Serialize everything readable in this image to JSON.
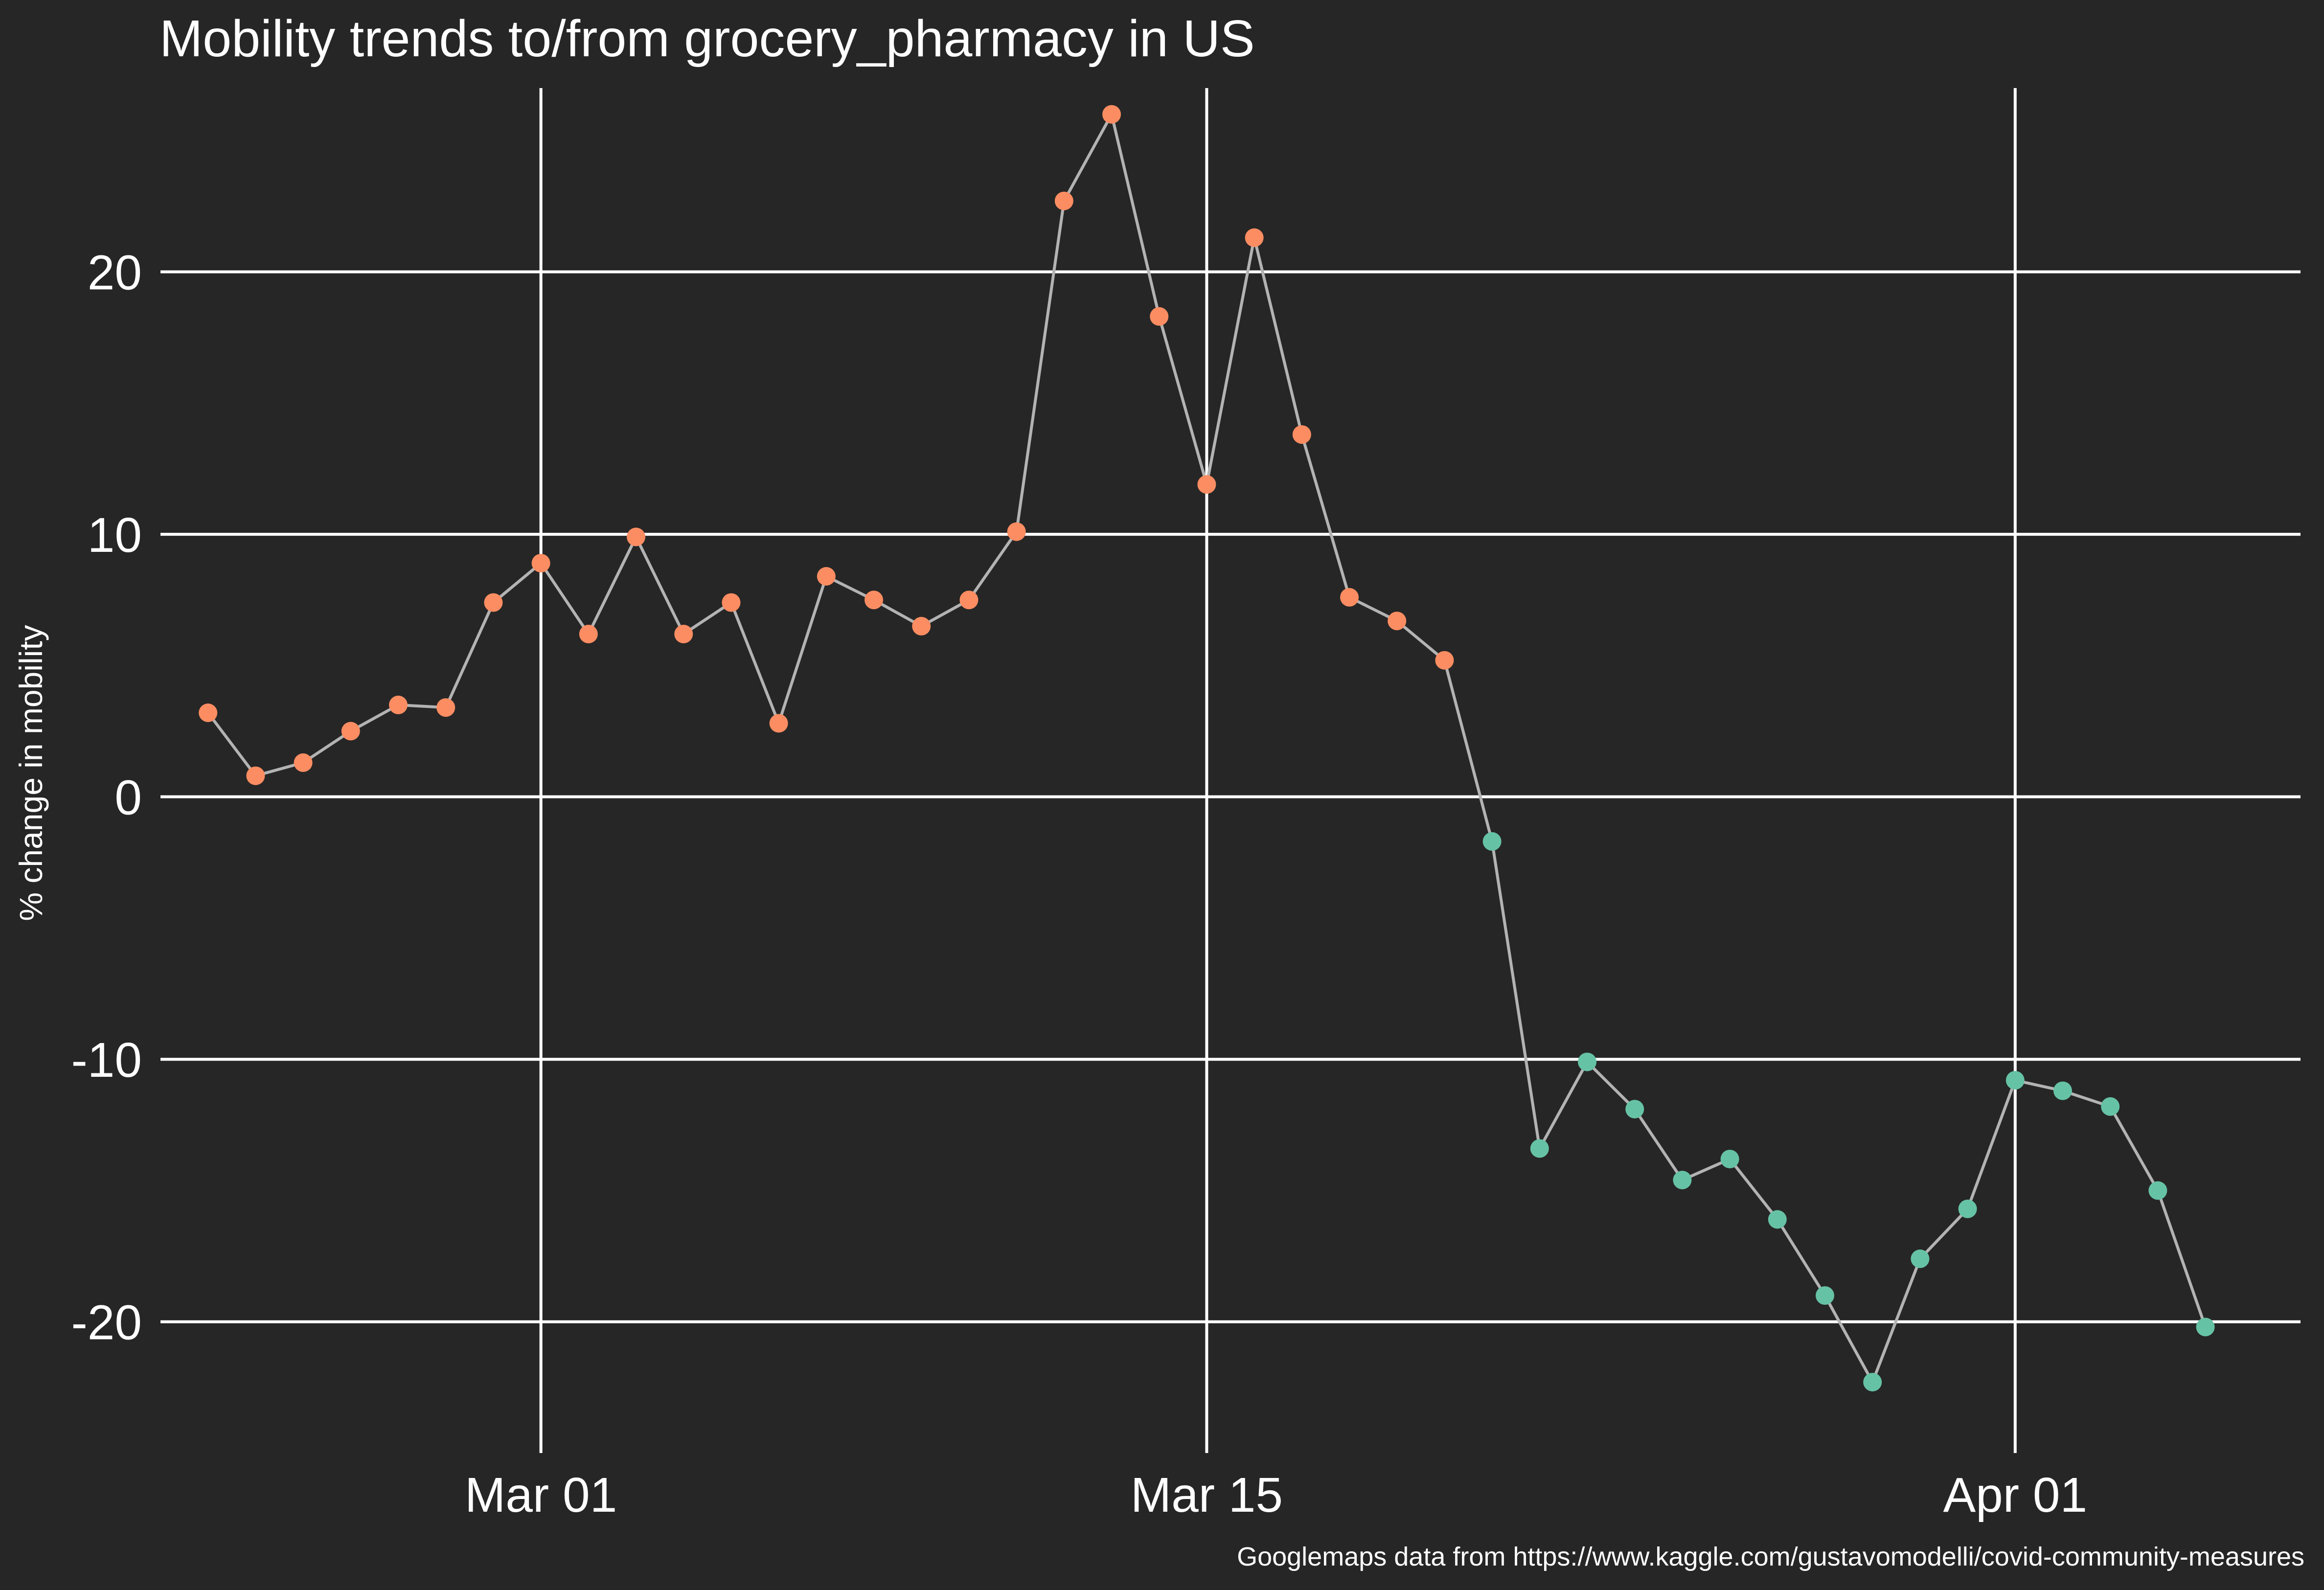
{
  "chart_data": {
    "type": "line",
    "title": "Mobility trends to/from grocery_pharmacy in US",
    "ylabel": "% change in mobility",
    "xlabel": "",
    "caption": "Googlemaps data from https://www.kaggle.com/gustavomodelli/covid-community-measures",
    "x_start": "2020-02-23",
    "xlim": [
      "2020-02-22",
      "2020-04-07"
    ],
    "ylim": [
      -25,
      27
    ],
    "xticks": [
      {
        "date": "2020-03-01",
        "label": "Mar 01"
      },
      {
        "date": "2020-03-15",
        "label": "Mar 15"
      },
      {
        "date": "2020-04-01",
        "label": "Apr 01"
      }
    ],
    "yticks": [
      {
        "value": 20,
        "label": "20"
      },
      {
        "value": 10,
        "label": "10"
      },
      {
        "value": 0,
        "label": "0"
      },
      {
        "value": -10,
        "label": "-10"
      },
      {
        "value": -20,
        "label": "-20"
      }
    ],
    "grid": true,
    "legend": "none",
    "colors": {
      "positive": "#fc8d62",
      "negative": "#66c2a5",
      "line": "#b3b3b3",
      "grid": "#ffffff",
      "background": "#262626"
    },
    "series": [
      {
        "values": [
          3.2,
          0.8,
          1.3,
          2.5,
          3.5,
          3.4,
          7.4,
          8.9,
          6.2,
          9.9,
          6.2,
          7.4,
          2.8,
          8.4,
          7.5,
          6.5,
          7.5,
          10.1,
          22.7,
          26.0,
          18.3,
          11.9,
          21.3,
          13.8,
          7.6,
          6.7,
          5.2,
          -1.7,
          -13.4,
          -10.1,
          -11.9,
          -14.6,
          -13.8,
          -16.1,
          -19.0,
          -22.3,
          -17.6,
          -15.7,
          -10.8,
          -11.2,
          -11.8,
          -15.0,
          -20.2
        ]
      }
    ]
  }
}
